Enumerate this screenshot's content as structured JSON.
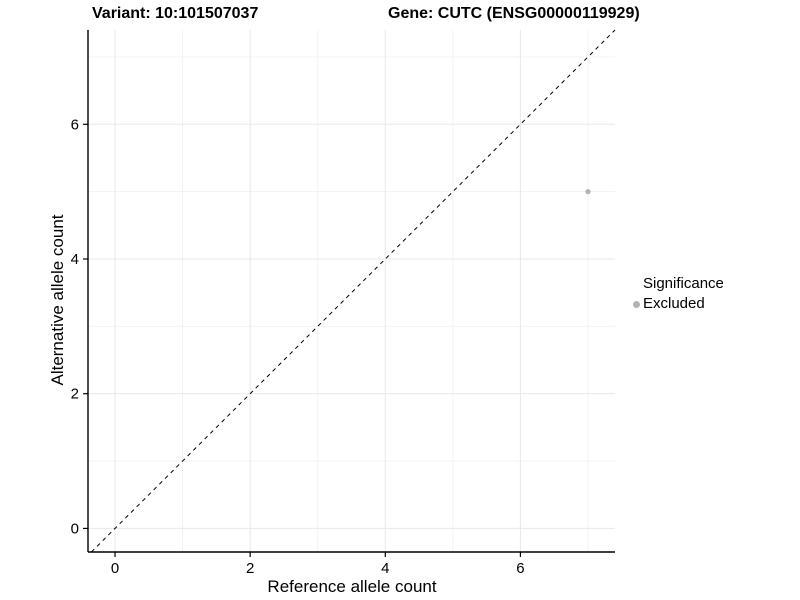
{
  "chart_data": {
    "type": "scatter",
    "title_left": "Variant: 10:101507037",
    "title_right": "Gene: CUTC (ENSG00000119929)",
    "xlabel": "Reference allele count",
    "ylabel": "Alternative allele count",
    "xlim": [
      -0.4,
      7.4
    ],
    "ylim": [
      -0.35,
      7.4
    ],
    "xticks": [
      0,
      2,
      4,
      6
    ],
    "yticks": [
      0,
      2,
      4,
      6
    ],
    "minor_xticks": [
      1,
      3,
      5,
      7
    ],
    "minor_yticks": [
      1,
      3,
      5,
      7
    ],
    "grid": true,
    "points": [
      {
        "x": 7,
        "y": 5,
        "significance": "Excluded"
      }
    ],
    "identity_line": {
      "slope": 1,
      "intercept": 0,
      "style": "dashed"
    },
    "legend": {
      "title": "Significance",
      "position": "right",
      "items": [
        {
          "label": "Excluded",
          "color": "#b3b3b3"
        }
      ]
    },
    "colors": {
      "point": "#b3b3b3",
      "grid_major": "#e8e8e8",
      "grid_minor": "#f3f3f3",
      "axis_line": "#000000",
      "tick_text": "#000000",
      "dashed_line": "#000000"
    }
  }
}
